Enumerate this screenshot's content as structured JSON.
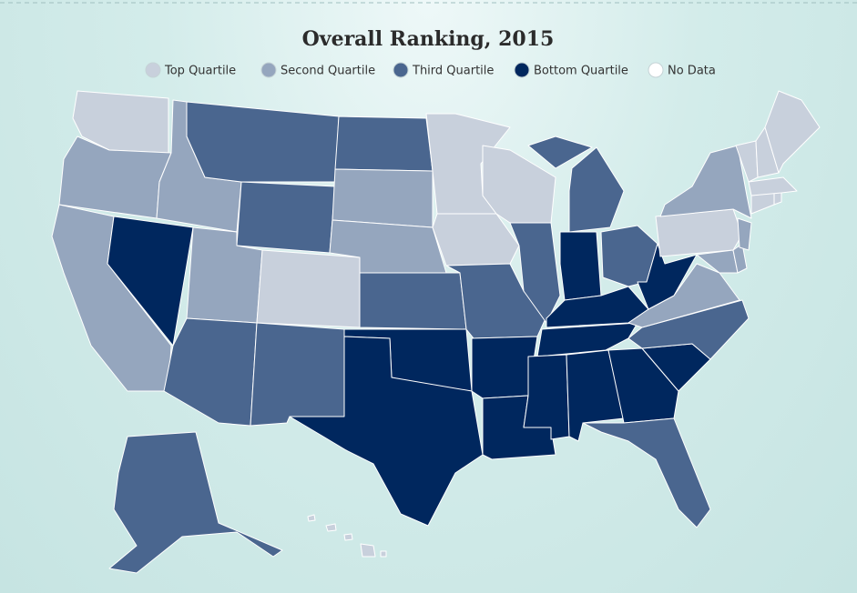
{
  "map_data": {
    "title": "Overall Ranking, 2015",
    "legend": [
      {
        "label": "Top Quartile",
        "color": "#c8d0dc"
      },
      {
        "label": "Second Quartile",
        "color": "#95a6be"
      },
      {
        "label": "Third Quartile",
        "color": "#4a668f"
      },
      {
        "label": "Bottom Quartile",
        "color": "#00275e"
      },
      {
        "label": "No Data",
        "color": "#ffffff"
      }
    ],
    "regions": [
      0,
      1,
      1,
      3,
      1,
      2,
      2,
      1,
      0,
      2,
      2,
      2,
      1,
      1,
      2,
      3,
      3,
      0,
      0,
      2,
      3,
      3,
      0,
      2,
      2,
      3,
      2,
      3,
      3,
      3,
      3,
      3,
      2,
      3,
      2,
      1,
      3,
      0,
      1,
      1,
      1,
      1,
      0,
      0,
      0,
      0,
      0,
      0,
      2,
      0
    ]
  }
}
